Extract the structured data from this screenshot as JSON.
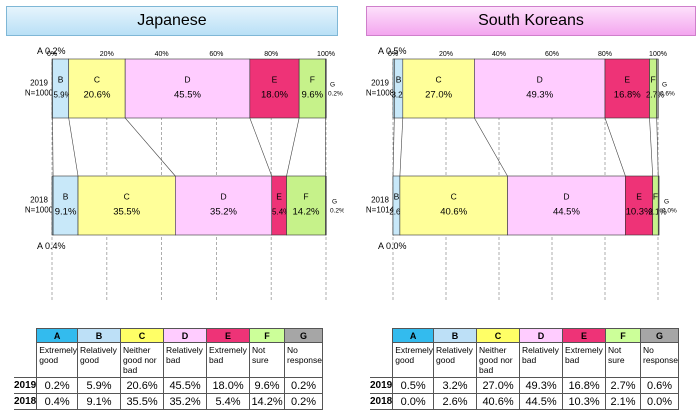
{
  "colors": {
    "A": "#bfe3f7",
    "B": "#c8e8f9",
    "C": "#ffff99",
    "D": "#ffccff",
    "E": "#ee3377",
    "F": "#c6f28a",
    "G": "#9a9a9a"
  },
  "header_colors": {
    "A": "#33bbee",
    "B": "#bde0f7",
    "C": "#ffff66",
    "D": "#ffccff",
    "E": "#ee3377",
    "F": "#ccff99",
    "G": "#a6a6a6"
  },
  "panels": [
    {
      "id": "jp",
      "title": "Japanese",
      "years": [
        {
          "year": "2019",
          "n": "N=1000"
        },
        {
          "year": "2018",
          "n": "N=1000"
        }
      ]
    },
    {
      "id": "kr",
      "title": "South Koreans",
      "years": [
        {
          "year": "2019",
          "n": "N=1008"
        },
        {
          "year": "2018",
          "n": "N=1014"
        }
      ]
    }
  ],
  "chart_data": [
    {
      "type": "bar",
      "title": "Japanese",
      "orientation": "horizontal-stacked",
      "categories": [
        "2019",
        "2018"
      ],
      "x_ticks": [
        "0%",
        "20%",
        "40%",
        "60%",
        "80%",
        "100%"
      ],
      "xlim": [
        0,
        100
      ],
      "grid": true,
      "series": [
        {
          "name": "A",
          "label": "Extremely good",
          "values": [
            0.2,
            0.4
          ],
          "labels": [
            "A 0.2%",
            "A 0.4%"
          ]
        },
        {
          "name": "B",
          "label": "Relatively good",
          "values": [
            5.9,
            9.1
          ],
          "labels": [
            "5.9%",
            "9.1%"
          ]
        },
        {
          "name": "C",
          "label": "Neither good nor bad",
          "values": [
            20.6,
            35.5
          ],
          "labels": [
            "20.6%",
            "35.5%"
          ]
        },
        {
          "name": "D",
          "label": "Relatively bad",
          "values": [
            45.5,
            35.2
          ],
          "labels": [
            "45.5%",
            "35.2%"
          ]
        },
        {
          "name": "E",
          "label": "Extremely bad",
          "values": [
            18.0,
            5.4
          ],
          "labels": [
            "18.0%",
            "5.4%"
          ]
        },
        {
          "name": "F",
          "label": "Not sure",
          "values": [
            9.6,
            14.2
          ],
          "labels": [
            "9.6%",
            "14.2%"
          ]
        },
        {
          "name": "G",
          "label": "No response",
          "values": [
            0.2,
            0.2
          ],
          "labels": [
            "0.2%",
            "0.2%"
          ]
        }
      ]
    },
    {
      "type": "bar",
      "title": "South Koreans",
      "orientation": "horizontal-stacked",
      "categories": [
        "2019",
        "2018"
      ],
      "x_ticks": [
        "0%",
        "20%",
        "40%",
        "60%",
        "80%",
        "100%"
      ],
      "xlim": [
        0,
        100
      ],
      "grid": true,
      "series": [
        {
          "name": "A",
          "label": "Extremely good",
          "values": [
            0.5,
            0.0
          ],
          "labels": [
            "A 0.5%",
            "A 0.0%"
          ]
        },
        {
          "name": "B",
          "label": "Relatively good",
          "values": [
            3.2,
            2.6
          ],
          "labels": [
            "3.2%",
            "2.6%"
          ]
        },
        {
          "name": "C",
          "label": "Neither good nor bad",
          "values": [
            27.0,
            40.6
          ],
          "labels": [
            "27.0%",
            "40.6%"
          ]
        },
        {
          "name": "D",
          "label": "Relatively bad",
          "values": [
            49.3,
            44.5
          ],
          "labels": [
            "49.3%",
            "44.5%"
          ]
        },
        {
          "name": "E",
          "label": "Extremely bad",
          "values": [
            16.8,
            10.3
          ],
          "labels": [
            "16.8%",
            "10.3%"
          ]
        },
        {
          "name": "F",
          "label": "Not sure",
          "values": [
            2.7,
            2.1
          ],
          "labels": [
            "2.7%",
            "2.1%"
          ]
        },
        {
          "name": "G",
          "label": "No response",
          "values": [
            0.6,
            0.0
          ],
          "labels": [
            "0.6%",
            "0.0%"
          ]
        }
      ]
    }
  ],
  "tables": [
    {
      "columns": [
        {
          "key": "A",
          "desc": "Extremely good"
        },
        {
          "key": "B",
          "desc": "Relatively good"
        },
        {
          "key": "C",
          "desc": "Neither good nor bad"
        },
        {
          "key": "D",
          "desc": "Relatively bad"
        },
        {
          "key": "E",
          "desc": "Extremely bad"
        },
        {
          "key": "F",
          "desc": "Not sure"
        },
        {
          "key": "G",
          "desc": "No response"
        }
      ],
      "rows": [
        {
          "year": "2019",
          "values": [
            "0.2%",
            "5.9%",
            "20.6%",
            "45.5%",
            "18.0%",
            "9.6%",
            "0.2%"
          ]
        },
        {
          "year": "2018",
          "values": [
            "0.4%",
            "9.1%",
            "35.5%",
            "35.2%",
            "5.4%",
            "14.2%",
            "0.2%"
          ]
        }
      ]
    },
    {
      "columns": [
        {
          "key": "A",
          "desc": "Extremely good"
        },
        {
          "key": "B",
          "desc": "Relatively good"
        },
        {
          "key": "C",
          "desc": "Neither good nor bad"
        },
        {
          "key": "D",
          "desc": "Relatively bad"
        },
        {
          "key": "E",
          "desc": "Extremely bad"
        },
        {
          "key": "F",
          "desc": "Not sure"
        },
        {
          "key": "G",
          "desc": "No response"
        }
      ],
      "rows": [
        {
          "year": "2019",
          "values": [
            "0.5%",
            "3.2%",
            "27.0%",
            "49.3%",
            "16.8%",
            "2.7%",
            "0.6%"
          ]
        },
        {
          "year": "2018",
          "values": [
            "0.0%",
            "2.6%",
            "40.6%",
            "44.5%",
            "10.3%",
            "2.1%",
            "0.0%"
          ]
        }
      ]
    }
  ]
}
